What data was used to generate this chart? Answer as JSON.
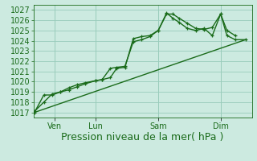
{
  "bg_color": "#cceae0",
  "grid_color": "#99ccbb",
  "line_color": "#1a6b1a",
  "ylabel": "Pression niveau de la mer( hPa )",
  "ylim": [
    1016.5,
    1027.5
  ],
  "yticks": [
    1017,
    1018,
    1019,
    1020,
    1021,
    1022,
    1023,
    1024,
    1025,
    1026,
    1027
  ],
  "xtick_labels": [
    "Ven",
    "Lun",
    "Sam",
    "Dim"
  ],
  "xtick_positions": [
    1,
    3,
    6,
    9
  ],
  "xlim": [
    0,
    10.5
  ],
  "line1_x": [
    0.05,
    0.5,
    0.9,
    1.3,
    1.7,
    2.1,
    2.5,
    3.0,
    3.3,
    3.7,
    4.0,
    4.4,
    4.8,
    5.2,
    5.6,
    6.0,
    6.4,
    6.7,
    7.0,
    7.4,
    7.8,
    8.2,
    8.6,
    9.0,
    9.3,
    9.7
  ],
  "line1_y": [
    1017.0,
    1018.7,
    1018.7,
    1019.0,
    1019.4,
    1019.7,
    1019.9,
    1020.1,
    1020.2,
    1021.3,
    1021.4,
    1021.5,
    1023.9,
    1024.1,
    1024.4,
    1025.0,
    1026.6,
    1026.6,
    1026.2,
    1025.7,
    1025.2,
    1025.1,
    1025.3,
    1026.6,
    1025.0,
    1024.5
  ],
  "line2_x": [
    0.05,
    0.5,
    0.9,
    1.3,
    1.7,
    2.1,
    2.5,
    3.0,
    3.3,
    3.7,
    4.0,
    4.4,
    4.8,
    5.2,
    5.6,
    6.0,
    6.4,
    6.7,
    7.0,
    7.4,
    7.8,
    8.2,
    8.6,
    9.0,
    9.3,
    9.7,
    10.2
  ],
  "line2_y": [
    1017.1,
    1018.0,
    1018.8,
    1019.0,
    1019.2,
    1019.5,
    1019.8,
    1020.1,
    1020.2,
    1020.4,
    1021.3,
    1021.4,
    1024.2,
    1024.4,
    1024.5,
    1025.0,
    1026.7,
    1026.2,
    1025.8,
    1025.2,
    1025.0,
    1025.2,
    1024.5,
    1026.6,
    1024.5,
    1024.1,
    1024.1
  ],
  "trend_x": [
    0.05,
    10.2
  ],
  "trend_y": [
    1017.0,
    1024.1
  ],
  "vline_positions": [
    1,
    3,
    6,
    9
  ],
  "linewidth": 1.0,
  "marker_size": 3.5,
  "font_size": 8.5,
  "tick_font_size": 7.0,
  "ylabel_font_size": 9.0
}
